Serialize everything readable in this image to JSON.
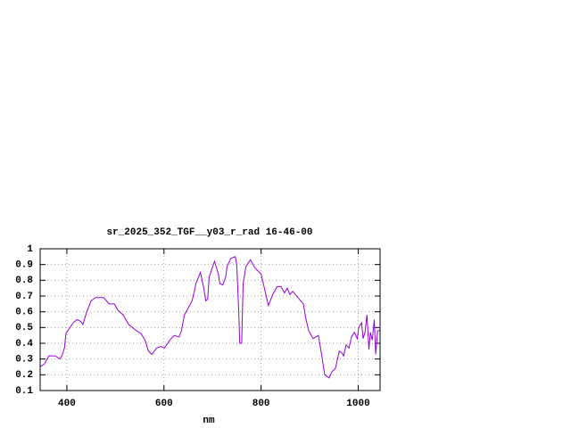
{
  "chart_data": {
    "type": "line",
    "title": "sr_2025_352_TGF__y03_r_rad 16-46-00",
    "xlabel": "nm",
    "x": [
      345,
      354,
      363,
      376,
      386,
      391,
      395,
      398,
      402,
      413,
      421,
      428,
      433,
      441,
      450,
      459,
      476,
      487,
      498,
      505,
      516,
      527,
      539,
      553,
      561,
      568,
      575,
      585,
      594,
      601,
      612,
      621,
      631,
      636,
      642,
      651,
      658,
      666,
      675,
      682,
      686,
      690,
      693,
      704,
      712,
      715,
      721,
      727,
      730,
      738,
      747,
      750,
      754,
      756,
      760,
      763,
      769,
      778,
      787,
      800,
      809,
      815,
      824,
      833,
      841,
      848,
      854,
      859,
      865,
      876,
      887,
      892,
      898,
      907,
      918,
      924,
      931,
      940,
      946,
      953,
      961,
      966,
      970,
      975,
      981,
      986,
      992,
      998,
      1001,
      1007,
      1010,
      1014,
      1018,
      1022,
      1025,
      1029,
      1033,
      1036,
      1040,
      1044,
      1045
    ],
    "values": [
      0.25,
      0.27,
      0.32,
      0.32,
      0.3,
      0.33,
      0.37,
      0.46,
      0.48,
      0.53,
      0.55,
      0.54,
      0.52,
      0.6,
      0.67,
      0.69,
      0.69,
      0.65,
      0.65,
      0.61,
      0.58,
      0.52,
      0.49,
      0.46,
      0.42,
      0.35,
      0.33,
      0.37,
      0.38,
      0.37,
      0.42,
      0.45,
      0.44,
      0.48,
      0.58,
      0.63,
      0.67,
      0.78,
      0.85,
      0.75,
      0.67,
      0.68,
      0.82,
      0.92,
      0.84,
      0.78,
      0.77,
      0.82,
      0.89,
      0.94,
      0.95,
      0.89,
      0.6,
      0.4,
      0.4,
      0.78,
      0.89,
      0.93,
      0.88,
      0.84,
      0.72,
      0.64,
      0.71,
      0.76,
      0.76,
      0.72,
      0.75,
      0.71,
      0.73,
      0.69,
      0.65,
      0.56,
      0.48,
      0.43,
      0.45,
      0.34,
      0.2,
      0.18,
      0.22,
      0.24,
      0.35,
      0.34,
      0.32,
      0.39,
      0.37,
      0.44,
      0.47,
      0.43,
      0.5,
      0.53,
      0.43,
      0.47,
      0.58,
      0.36,
      0.47,
      0.42,
      0.55,
      0.33,
      0.48,
      0.48,
      0.51
    ],
    "color": "#9400d3",
    "xlim": [
      345,
      1045
    ],
    "ylim": [
      0.1,
      1
    ],
    "xticks": [
      400,
      600,
      800,
      1000
    ],
    "yticks": [
      0.1,
      0.2,
      0.3,
      0.4,
      0.5,
      0.6,
      0.7,
      0.8,
      0.9,
      1
    ],
    "grid": true
  }
}
